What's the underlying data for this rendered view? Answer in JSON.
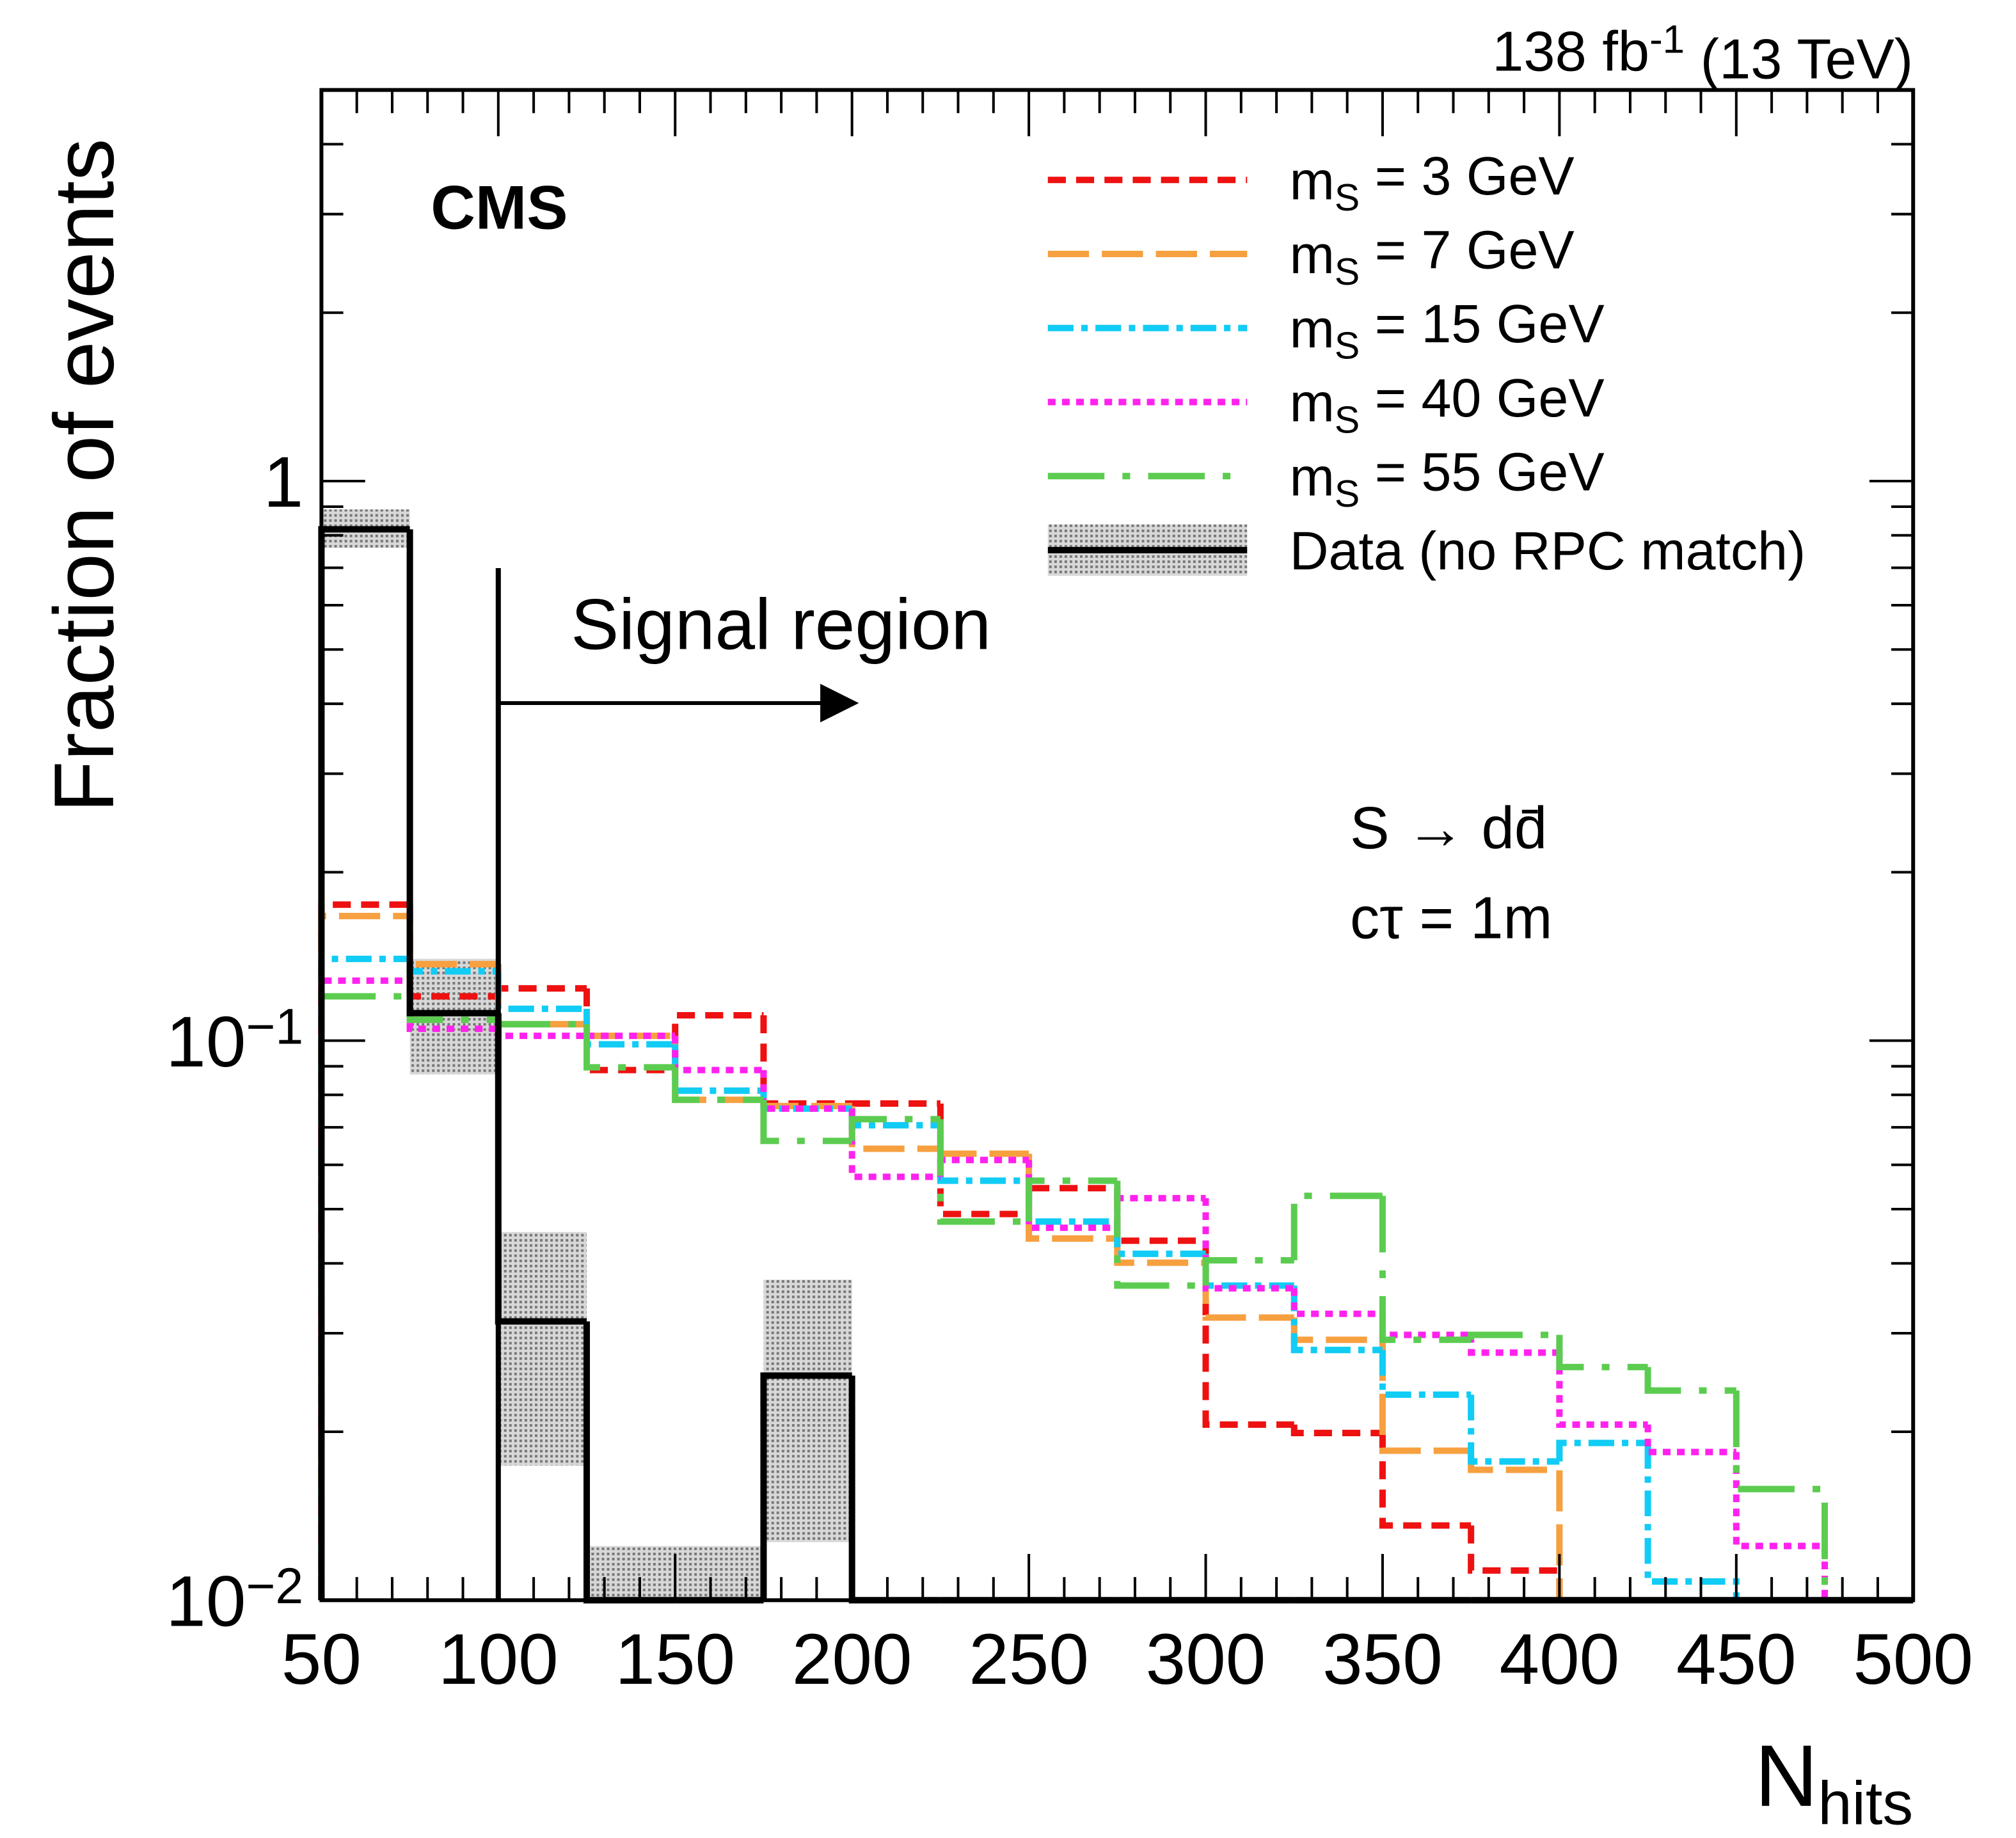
{
  "chart_data": {
    "type": "histogram",
    "top_right": "138 fb^{-1} (13 TeV)",
    "experiment": "CMS",
    "annotations": [
      "S → dd̄",
      "cτ = 1m"
    ],
    "signal_region": {
      "label": "Signal region",
      "x": 100
    },
    "x_label": "N_{hits}",
    "y_label": "Fraction of events",
    "log_y": true,
    "xlim": [
      50,
      500
    ],
    "ylim": [
      0.01,
      5
    ],
    "xticks": [
      50,
      100,
      150,
      200,
      250,
      300,
      350,
      400,
      450,
      500
    ],
    "minor_xticks": [
      60,
      70,
      80,
      90,
      110,
      120,
      130,
      140,
      160,
      170,
      180,
      190,
      210,
      220,
      230,
      240,
      260,
      270,
      280,
      290,
      310,
      320,
      330,
      340,
      360,
      370,
      380,
      390,
      410,
      420,
      430,
      440,
      460,
      470,
      480,
      490
    ],
    "yticks": [
      {
        "value": 0.01,
        "label": "10^{−2}"
      },
      {
        "value": 0.1,
        "label": "10^{−1}"
      },
      1
    ],
    "minor_yticks": [
      0.02,
      0.03,
      0.04,
      0.05,
      0.06,
      0.07,
      0.08,
      0.09,
      0.2,
      0.3,
      0.4,
      0.5,
      0.6,
      0.7,
      0.8,
      0.9,
      2,
      3,
      4,
      5
    ],
    "bins": [
      50,
      75,
      100,
      125,
      150,
      175,
      200,
      225,
      250,
      275,
      300,
      325,
      350,
      375,
      400,
      425,
      450,
      475,
      500
    ],
    "series": [
      {
        "name": "m_{S} = 3 GeV",
        "color": "#ee1111",
        "dash": "14,8",
        "values": [
          0.175,
          0.12,
          0.124,
          0.0886,
          0.111,
          0.0772,
          0.0772,
          0.049,
          0.0545,
          0.0439,
          0.0206,
          0.0199,
          0.0136,
          0.0113,
          null,
          null,
          null,
          null
        ]
      },
      {
        "name": "m_{S} = 7 GeV",
        "color": "#f7a040",
        "dash": "32,10",
        "values": [
          0.167,
          0.137,
          0.107,
          0.102,
          0.0784,
          0.0764,
          0.0641,
          0.0628,
          0.0443,
          0.0401,
          0.032,
          0.0292,
          0.0185,
          0.0171,
          null,
          null,
          null,
          null
        ]
      },
      {
        "name": "m_{S} = 15 GeV",
        "color": "#11ccf5",
        "dash": "20,6,5,6",
        "values": [
          0.14,
          0.133,
          0.114,
          0.0985,
          0.0814,
          0.0756,
          0.0706,
          0.0562,
          0.0475,
          0.0416,
          0.0365,
          0.028,
          0.0233,
          0.0177,
          0.0191,
          0.0108,
          null,
          null
        ]
      },
      {
        "name": "m_{S} = 40 GeV",
        "color": "#ff22ee",
        "dash": "6,5",
        "values": [
          0.128,
          0.105,
          0.102,
          0.102,
          0.0886,
          0.0756,
          0.0571,
          0.0612,
          0.0463,
          0.0523,
          0.0361,
          0.0325,
          0.0298,
          0.0277,
          0.0206,
          0.0184,
          0.0125,
          null
        ]
      },
      {
        "name": "m_{S} = 55 GeV",
        "color": "#5ccc50",
        "dash": "44,14,6,14",
        "values": [
          0.12,
          0.109,
          0.107,
          0.0896,
          0.0784,
          0.0662,
          0.0724,
          0.0475,
          0.0562,
          0.0365,
          0.0405,
          0.0528,
          0.0292,
          0.0298,
          0.0261,
          0.0237,
          0.0158,
          null
        ]
      },
      {
        "name": "Data (no RPC match)",
        "color": "#000000",
        "data": true,
        "values": [
          0.82,
          0.112,
          0.0315,
          0,
          0,
          0.0252,
          0,
          0,
          0,
          0,
          0,
          0,
          0,
          0,
          0,
          0,
          0,
          0
        ],
        "band_low": [
          0.76,
          0.087,
          0.0174,
          0.01,
          0.01,
          0.0127,
          null,
          null,
          null,
          null,
          null,
          null,
          null,
          null,
          null,
          null,
          null,
          null
        ],
        "band_high": [
          0.89,
          0.14,
          0.0455,
          0.0125,
          0.0125,
          0.0374,
          null,
          null,
          null,
          null,
          null,
          null,
          null,
          null,
          null,
          null,
          null,
          null
        ]
      }
    ]
  }
}
